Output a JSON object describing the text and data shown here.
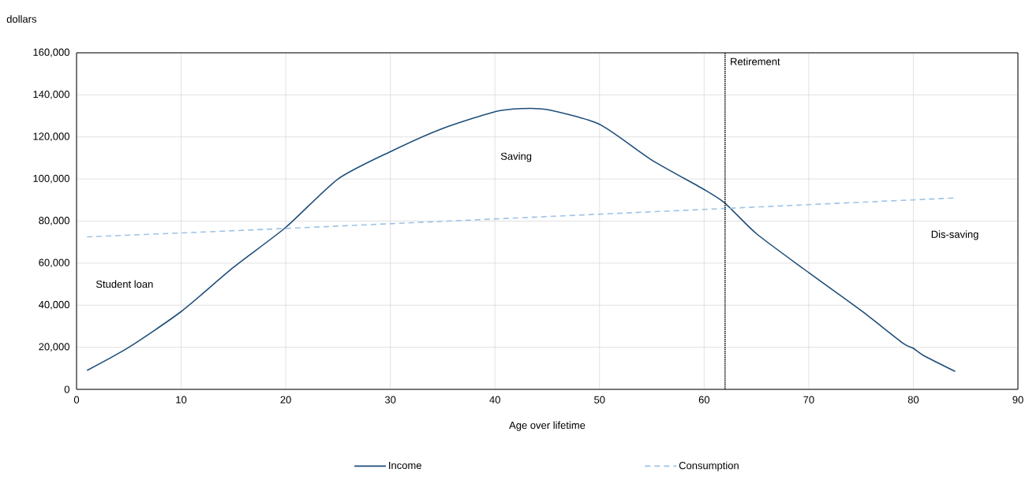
{
  "chart_data": {
    "type": "line",
    "xlabel": "Age over lifetime",
    "ylabel": "dollars",
    "series": [
      {
        "name": "Income",
        "color": "#1f4e79",
        "line_style": "solid",
        "x": [
          1,
          5,
          10,
          15,
          20,
          25,
          30,
          35,
          40,
          42.5,
          45,
          50,
          55,
          60,
          62,
          65,
          70,
          75,
          79,
          80,
          81,
          84
        ],
        "values": [
          9000,
          20000,
          37000,
          58000,
          77000,
          100000,
          113000,
          124000,
          132000,
          133500,
          133000,
          126000,
          109000,
          95000,
          88500,
          74000,
          55500,
          37500,
          22000,
          19500,
          16000,
          8500
        ]
      },
      {
        "name": "Consumption",
        "color": "#9dc3e6",
        "line_style": "dashed",
        "x": [
          1,
          20,
          62,
          84
        ],
        "values": [
          72500,
          76500,
          86000,
          91000
        ]
      }
    ],
    "xlim": [
      0,
      90
    ],
    "xticks": [
      0,
      10,
      20,
      30,
      40,
      50,
      60,
      70,
      80,
      90
    ],
    "ylim": [
      0,
      160000
    ],
    "yticks": [
      {
        "value": 0,
        "label": "0"
      },
      {
        "value": 20000,
        "label": "20,000"
      },
      {
        "value": 40000,
        "label": "40,000"
      },
      {
        "value": 60000,
        "label": "60,000"
      },
      {
        "value": 80000,
        "label": "80,000"
      },
      {
        "value": 100000,
        "label": "100,000"
      },
      {
        "value": 120000,
        "label": "120,000"
      },
      {
        "value": 140000,
        "label": "140,000"
      },
      {
        "value": 160000,
        "label": "160,000"
      }
    ],
    "ref_lines": [
      {
        "axis": "x",
        "value": 62,
        "label": "Retirement",
        "color": "#000000",
        "line_style": "dotted"
      }
    ],
    "annotations": [
      "Student loan",
      "Saving",
      "Dis-saving"
    ],
    "grid": true,
    "legend": "bottom",
    "marker": "none"
  }
}
